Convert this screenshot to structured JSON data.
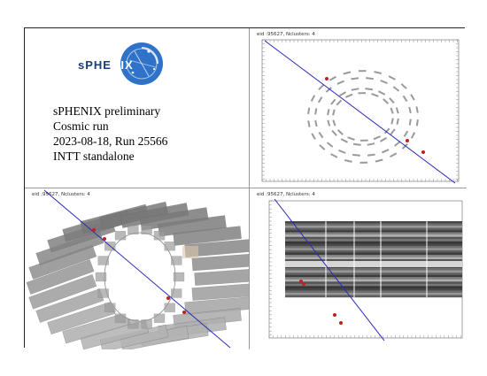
{
  "logo": {
    "text_left": "sPHE",
    "text_right": "NIX",
    "accent": "#2e73c9"
  },
  "info": {
    "line1": "sPHENIX preliminary",
    "line2": "Cosmic run",
    "line3": "2023-08-18, Run 25566",
    "line4": "INTT standalone"
  },
  "plots": {
    "xy_title": "eid :95627, Nclusters: 4",
    "view3d_title": "eid :95627, Nclusters: 4",
    "zphi_title": "eid :95627, Nclusters: 4"
  },
  "colors": {
    "track": "#2a2ab8",
    "cluster": "#c02020",
    "ladder": "#9a9a9a"
  }
}
